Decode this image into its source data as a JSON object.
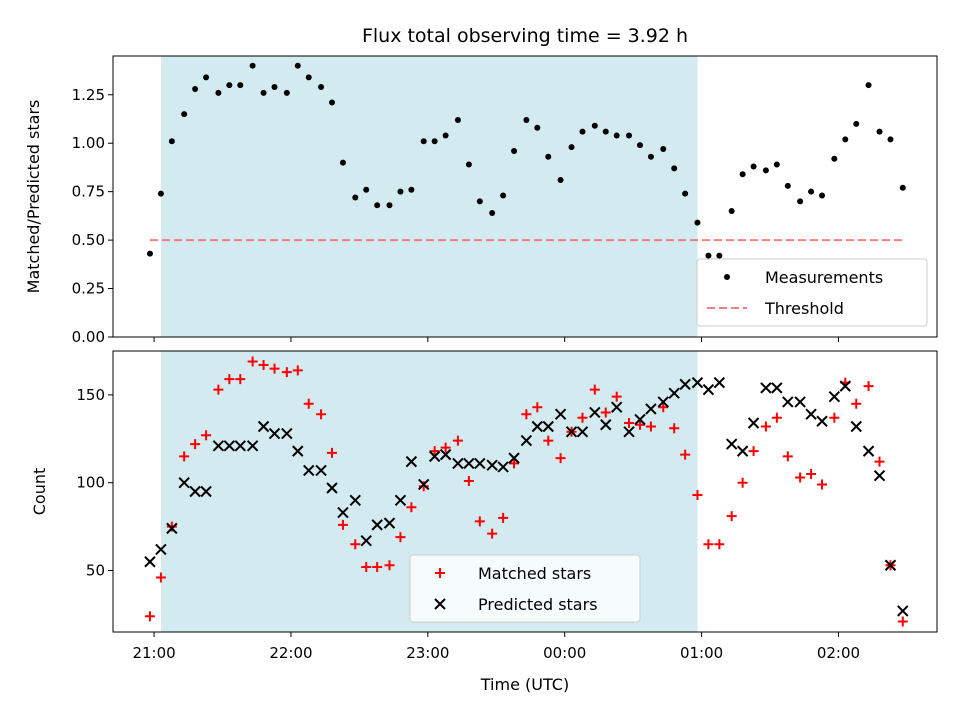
{
  "chart_data": [
    {
      "type": "scatter",
      "title": "Flux total observing time = 3.92 h",
      "ylabel": "Matched/Predicted stars",
      "xlabel": "",
      "x_unit": "hours since 21:00 UTC",
      "xlim": [
        -0.3,
        5.72
      ],
      "ylim": [
        0.0,
        1.45
      ],
      "yticks": [
        0.0,
        0.25,
        0.5,
        0.75,
        1.0,
        1.25
      ],
      "ytick_labels": [
        "0.00",
        "0.25",
        "0.50",
        "0.75",
        "1.00",
        "1.25"
      ],
      "highlight_span": {
        "x_start": 0.05,
        "x_end": 3.97,
        "color": "#d3eaf0"
      },
      "legend_position": "lower-right",
      "series": [
        {
          "name": "Measurements",
          "color": "#000000",
          "marker": "dot",
          "x": [
            -0.03,
            0.05,
            0.13,
            0.22,
            0.3,
            0.38,
            0.47,
            0.55,
            0.63,
            0.72,
            0.8,
            0.88,
            0.97,
            1.05,
            1.13,
            1.22,
            1.3,
            1.38,
            1.47,
            1.55,
            1.63,
            1.72,
            1.8,
            1.88,
            1.97,
            2.05,
            2.13,
            2.22,
            2.3,
            2.38,
            2.47,
            2.55,
            2.63,
            2.72,
            2.8,
            2.88,
            2.97,
            3.05,
            3.13,
            3.22,
            3.3,
            3.38,
            3.47,
            3.55,
            3.63,
            3.72,
            3.8,
            3.88,
            3.97,
            4.05,
            4.13,
            4.22,
            4.3,
            4.38,
            4.47,
            4.55,
            4.63,
            4.72,
            4.8,
            4.88,
            4.97,
            5.05,
            5.13,
            5.22,
            5.3,
            5.38,
            5.47
          ],
          "y": [
            0.43,
            0.74,
            1.01,
            1.15,
            1.28,
            1.34,
            1.26,
            1.3,
            1.3,
            1.4,
            1.26,
            1.29,
            1.26,
            1.4,
            1.34,
            1.29,
            1.21,
            0.9,
            0.72,
            0.76,
            0.68,
            0.68,
            0.75,
            0.76,
            1.01,
            1.01,
            1.04,
            1.12,
            0.89,
            0.7,
            0.64,
            0.73,
            0.96,
            1.12,
            1.08,
            0.93,
            0.81,
            0.98,
            1.06,
            1.09,
            1.06,
            1.04,
            1.04,
            0.99,
            0.93,
            0.97,
            0.87,
            0.74,
            0.59,
            0.42,
            0.42,
            0.65,
            0.84,
            0.88,
            0.86,
            0.89,
            0.78,
            0.7,
            0.75,
            0.73,
            0.92,
            1.02,
            1.1,
            1.3,
            1.06,
            1.02,
            0.77
          ]
        },
        {
          "name": "Threshold",
          "color": "#f08080",
          "style": "dashed",
          "x": [
            -0.03,
            5.47
          ],
          "y": [
            0.5,
            0.5
          ]
        }
      ]
    },
    {
      "type": "scatter",
      "title": "",
      "ylabel": "Count",
      "xlabel": "Time (UTC)",
      "x_unit": "hours since 21:00 UTC",
      "xlim": [
        -0.3,
        5.72
      ],
      "ylim": [
        15,
        175
      ],
      "yticks": [
        50,
        100,
        150
      ],
      "ytick_labels": [
        "50",
        "100",
        "150"
      ],
      "xticks": [
        0,
        1,
        2,
        3,
        4,
        5
      ],
      "xtick_labels": [
        "21:00",
        "22:00",
        "23:00",
        "00:00",
        "01:00",
        "02:00"
      ],
      "highlight_span": {
        "x_start": 0.05,
        "x_end": 3.97,
        "color": "#d3eaf0"
      },
      "legend_position": "bottom-center",
      "series": [
        {
          "name": "Matched stars",
          "color": "#ff0000",
          "marker": "plus",
          "x": [
            -0.03,
            0.05,
            0.13,
            0.22,
            0.3,
            0.38,
            0.47,
            0.55,
            0.63,
            0.72,
            0.8,
            0.88,
            0.97,
            1.05,
            1.13,
            1.22,
            1.3,
            1.38,
            1.47,
            1.55,
            1.63,
            1.72,
            1.8,
            1.88,
            1.97,
            2.05,
            2.13,
            2.22,
            2.3,
            2.38,
            2.47,
            2.55,
            2.63,
            2.72,
            2.8,
            2.88,
            2.97,
            3.05,
            3.13,
            3.22,
            3.3,
            3.38,
            3.47,
            3.55,
            3.63,
            3.72,
            3.8,
            3.88,
            3.97,
            4.05,
            4.13,
            4.22,
            4.3,
            4.38,
            4.47,
            4.55,
            4.63,
            4.72,
            4.8,
            4.88,
            4.97,
            5.05,
            5.13,
            5.22,
            5.3,
            5.38,
            5.47
          ],
          "y": [
            24,
            46,
            75,
            115,
            122,
            127,
            153,
            159,
            159,
            169,
            167,
            165,
            163,
            164,
            145,
            139,
            117,
            76,
            65,
            52,
            52,
            53,
            69,
            86,
            98,
            118,
            120,
            124,
            101,
            78,
            71,
            80,
            111,
            139,
            143,
            124,
            114,
            129,
            137,
            153,
            140,
            149,
            134,
            133,
            132,
            143,
            131,
            116,
            93,
            65,
            65,
            81,
            100,
            118,
            132,
            137,
            115,
            103,
            105,
            99,
            137,
            157,
            145,
            155,
            112,
            53,
            21
          ]
        },
        {
          "name": "Predicted stars",
          "color": "#000000",
          "marker": "x",
          "x": [
            -0.03,
            0.05,
            0.13,
            0.22,
            0.3,
            0.38,
            0.47,
            0.55,
            0.63,
            0.72,
            0.8,
            0.88,
            0.97,
            1.05,
            1.13,
            1.22,
            1.3,
            1.38,
            1.47,
            1.55,
            1.63,
            1.72,
            1.8,
            1.88,
            1.97,
            2.05,
            2.13,
            2.22,
            2.3,
            2.38,
            2.47,
            2.55,
            2.63,
            2.72,
            2.8,
            2.88,
            2.97,
            3.05,
            3.13,
            3.22,
            3.3,
            3.38,
            3.47,
            3.55,
            3.63,
            3.72,
            3.8,
            3.88,
            3.97,
            4.05,
            4.13,
            4.22,
            4.3,
            4.38,
            4.47,
            4.55,
            4.63,
            4.72,
            4.8,
            4.88,
            4.97,
            5.05,
            5.13,
            5.22,
            5.3,
            5.38,
            5.47
          ],
          "y": [
            55,
            62,
            74,
            100,
            95,
            95,
            121,
            121,
            121,
            121,
            132,
            128,
            128,
            118,
            107,
            107,
            97,
            83,
            90,
            67,
            76,
            77,
            90,
            112,
            99,
            115,
            116,
            111,
            111,
            111,
            110,
            109,
            114,
            124,
            132,
            132,
            139,
            129,
            129,
            140,
            133,
            143,
            129,
            136,
            142,
            146,
            151,
            156,
            157,
            153,
            157,
            122,
            118,
            134,
            154,
            154,
            146,
            146,
            139,
            135,
            149,
            155,
            132,
            118,
            104,
            53,
            27
          ]
        }
      ]
    }
  ]
}
